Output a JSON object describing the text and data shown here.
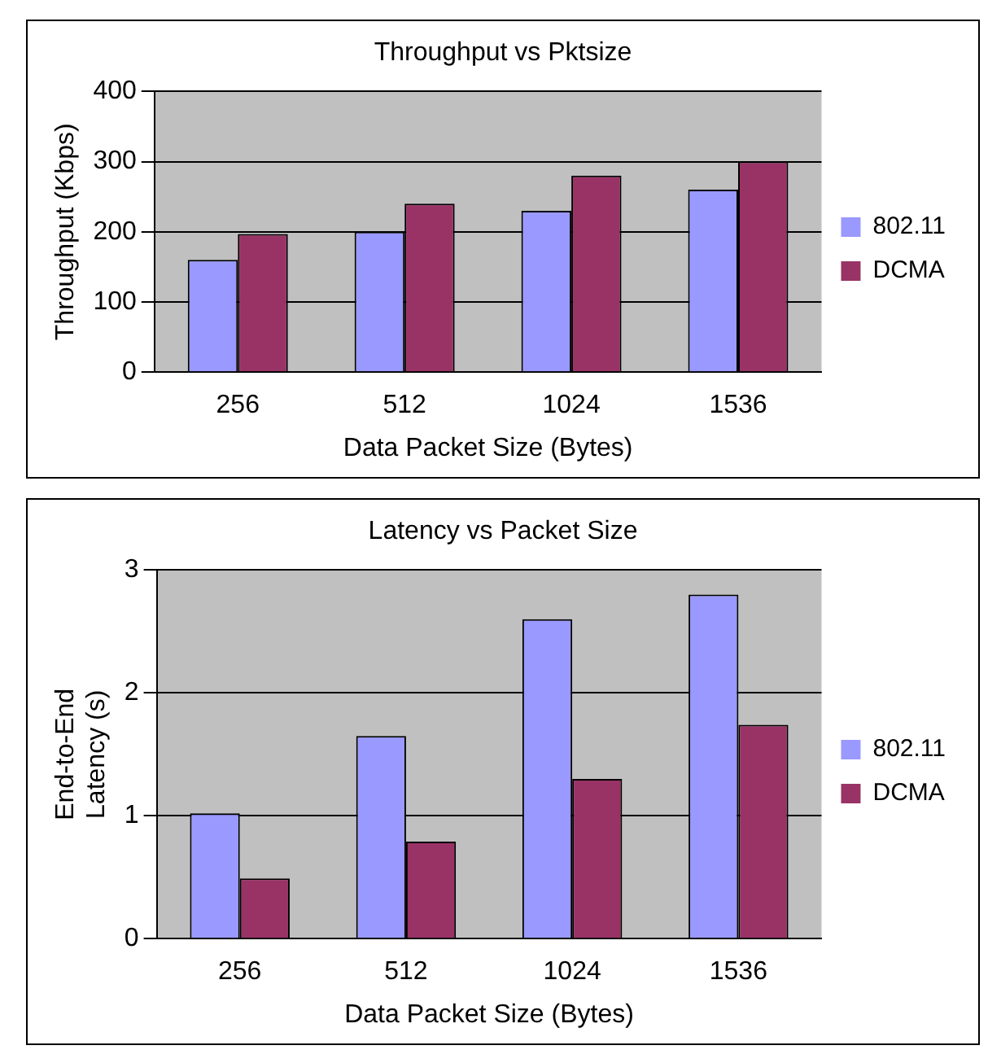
{
  "chart_data": [
    {
      "type": "bar",
      "title": "Throughput vs Pktsize",
      "xlabel": "Data Packet Size (Bytes)",
      "ylabel": "Throughput (Kbps)",
      "categories": [
        "256",
        "512",
        "1024",
        "1536"
      ],
      "series": [
        {
          "name": "802.11",
          "color": "#9999ff",
          "values": [
            160,
            200,
            230,
            260
          ]
        },
        {
          "name": "DCMA",
          "color": "#993366",
          "values": [
            197,
            240,
            280,
            300
          ]
        }
      ],
      "ylim": [
        0,
        400
      ],
      "yticks": [
        0,
        100,
        200,
        300,
        400
      ],
      "grid": "y",
      "legend": "right"
    },
    {
      "type": "bar",
      "title": "Latency vs Packet Size",
      "xlabel": "Data Packet Size (Bytes)",
      "ylabel": "End-to-End\nLatency (s)",
      "categories": [
        "256",
        "512",
        "1024",
        "1536"
      ],
      "series": [
        {
          "name": "802.11",
          "color": "#9999ff",
          "values": [
            1.02,
            1.65,
            2.6,
            2.8
          ]
        },
        {
          "name": "DCMA",
          "color": "#993366",
          "values": [
            0.49,
            0.79,
            1.3,
            1.74
          ]
        }
      ],
      "ylim": [
        0,
        3
      ],
      "yticks": [
        0,
        1,
        2,
        3
      ],
      "grid": "y",
      "legend": "right"
    }
  ]
}
